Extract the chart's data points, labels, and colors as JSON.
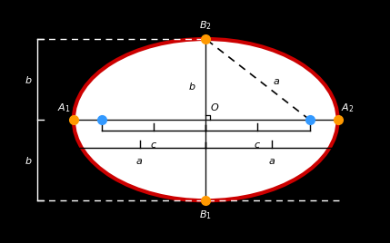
{
  "bg_color": "#000000",
  "ellipse_fill": "#ffffff",
  "ellipse_edge": "#cc0000",
  "ellipse_lw": 3.0,
  "a": 1.55,
  "b": 0.95,
  "c": 1.22,
  "focus_color": "#3399ff",
  "vertex_color": "#ff9900",
  "axis_color": "#222222",
  "line_color": "#111111",
  "white": "#ffffff",
  "black": "#000000",
  "fs_label": 8.0,
  "fs_small": 7.5,
  "marker_vertex": 7,
  "marker_focus": 7,
  "xlim": [
    -2.35,
    2.1
  ],
  "ylim": [
    -1.42,
    1.38
  ]
}
